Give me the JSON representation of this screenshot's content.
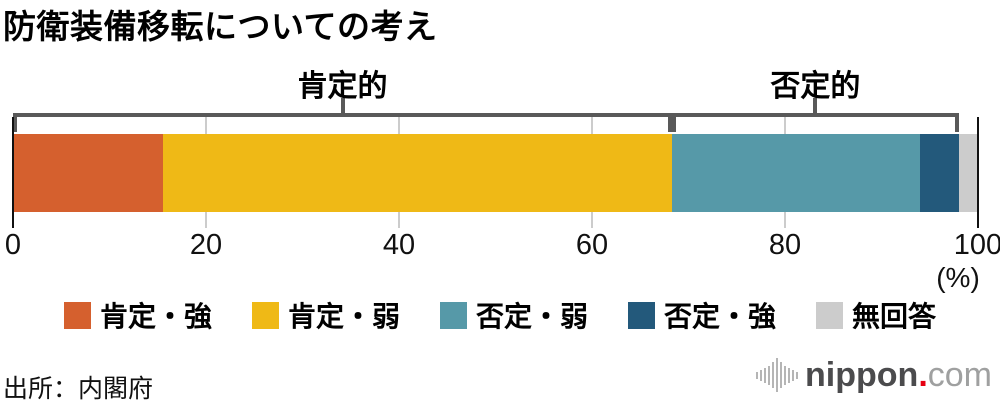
{
  "title": "防衛装備移転についての考え",
  "source": "出所：内閣府",
  "axis": {
    "unit_label": "(%)"
  },
  "logo": {
    "brand": "nippon",
    "dot": ".",
    "tld": "com"
  },
  "chart_data": {
    "type": "bar",
    "orientation": "horizontal_stacked",
    "title": "防衛装備移転についての考え",
    "xlabel": "(%)",
    "xlim": [
      0,
      100
    ],
    "x_ticks": [
      0,
      20,
      40,
      60,
      80,
      100
    ],
    "grid": "vertical gridlines at 20, 40, 60, 80; solid black lines at 0 and 100",
    "legend_position": "bottom",
    "series": [
      {
        "name": "肯定・強",
        "value": 15.5,
        "color": "#d5602e"
      },
      {
        "name": "肯定・弱",
        "value": 52.8,
        "color": "#efb916"
      },
      {
        "name": "否定・弱",
        "value": 25.7,
        "color": "#5699a8"
      },
      {
        "name": "否定・強",
        "value": 4.0,
        "color": "#23597b"
      },
      {
        "name": "無回答",
        "value": 2.0,
        "color": "#cccccc"
      }
    ],
    "group_brackets": [
      {
        "label": "肯定的",
        "from_pct": 0,
        "to_pct": 68.3
      },
      {
        "label": "否定的",
        "from_pct": 68.3,
        "to_pct": 98.0
      }
    ]
  }
}
